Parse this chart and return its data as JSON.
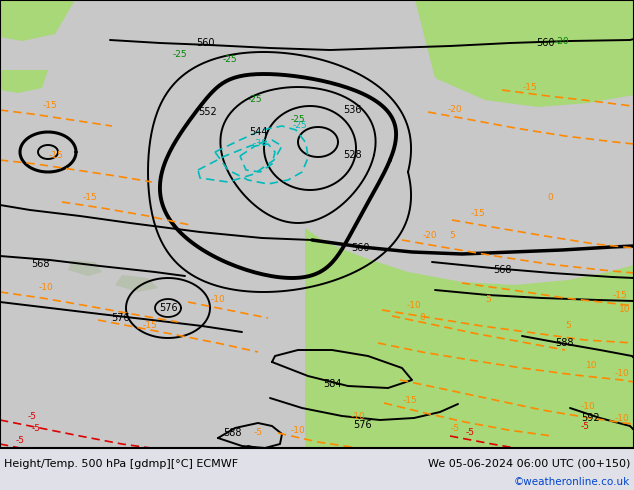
{
  "title_left": "Height/Temp. 500 hPa [gdmp][°C] ECMWF",
  "title_right": "We 05-06-2024 06:00 UTC (00+150)",
  "watermark": "©weatheronline.co.uk",
  "bg_grey": "#c8c8c8",
  "bg_green": "#a8d878",
  "contour_black": "#000000",
  "contour_orange": "#ff8800",
  "contour_red": "#dd0000",
  "contour_cyan": "#00bbbb",
  "contour_green": "#008800",
  "bar_bg": "#e0e0e8",
  "bar_blue": "#0044cc",
  "figw": 6.34,
  "figh": 4.9,
  "dpi": 100
}
